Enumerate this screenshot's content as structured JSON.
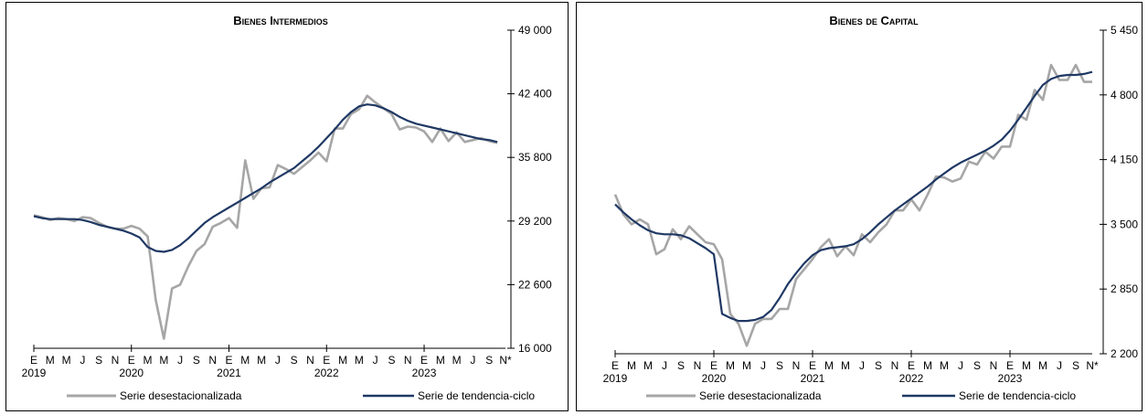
{
  "chart_data": [
    {
      "type": "line",
      "title": "Bienes Intermedios",
      "colors": {
        "seasonal": "#a6a6a6",
        "trend": "#1f3864"
      },
      "ylim": [
        16000,
        49000
      ],
      "yticks": [
        "16 000",
        "22 600",
        "29 200",
        "35 800",
        "42 400",
        "49 000"
      ],
      "ytick_values": [
        16000,
        22600,
        29200,
        35800,
        42400,
        49000
      ],
      "axis_side": "right",
      "grid": false,
      "legend_position": "bottom",
      "month_labels": [
        "E",
        "M",
        "M",
        "J",
        "S",
        "N",
        "E",
        "M",
        "M",
        "J",
        "S",
        "N",
        "E",
        "M",
        "M",
        "J",
        "S",
        "N",
        "E",
        "M",
        "M",
        "J",
        "S",
        "N",
        "E",
        "M",
        "M",
        "J",
        "S",
        "N*"
      ],
      "year_labels": [
        {
          "label": "2019",
          "index": 0
        },
        {
          "label": "2020",
          "index": 12
        },
        {
          "label": "2021",
          "index": 24
        },
        {
          "label": "2022",
          "index": 36
        },
        {
          "label": "2023",
          "index": 48
        }
      ],
      "series": [
        {
          "name": "Serie desestacionalizada",
          "color": "#a6a6a6",
          "values": [
            29800,
            29600,
            29300,
            29500,
            29400,
            29200,
            29600,
            29500,
            29000,
            28600,
            28400,
            28400,
            28700,
            28400,
            27600,
            21000,
            17000,
            22200,
            22600,
            24500,
            26100,
            26800,
            28600,
            29000,
            29500,
            28500,
            35500,
            31500,
            32600,
            32700,
            35000,
            34600,
            34100,
            34800,
            35500,
            36300,
            35400,
            38800,
            38800,
            40300,
            40800,
            42200,
            41500,
            40900,
            40300,
            38700,
            39000,
            38900,
            38500,
            37400,
            38800,
            37500,
            38400,
            37400,
            37600,
            37800,
            37500,
            37300
          ],
          "values_note": ""
        },
        {
          "name": "Serie de tendencia-ciclo",
          "color": "#1f3864",
          "values": [
            29700,
            29500,
            29400,
            29400,
            29400,
            29400,
            29300,
            29100,
            28800,
            28600,
            28400,
            28200,
            27900,
            27500,
            26500,
            26100,
            26000,
            26200,
            26700,
            27400,
            28200,
            29000,
            29600,
            30100,
            30600,
            31100,
            31600,
            32100,
            32600,
            33200,
            33700,
            34200,
            34700,
            35400,
            36100,
            36900,
            37800,
            38700,
            39700,
            40500,
            41100,
            41300,
            41200,
            40900,
            40500,
            40000,
            39600,
            39300,
            39100,
            38900,
            38700,
            38500,
            38300,
            38100,
            37900,
            37700,
            37600,
            37400
          ]
        }
      ]
    },
    {
      "type": "line",
      "title": "Bienes de Capital",
      "colors": {
        "seasonal": "#a6a6a6",
        "trend": "#1f3864"
      },
      "ylim": [
        2200,
        5450
      ],
      "yticks": [
        "2 200",
        "2 850",
        "3 500",
        "4 150",
        "4 800",
        "5 450"
      ],
      "ytick_values": [
        2200,
        2850,
        3500,
        4150,
        4800,
        5450
      ],
      "axis_side": "right",
      "grid": false,
      "legend_position": "bottom",
      "month_labels": [
        "E",
        "M",
        "M",
        "J",
        "S",
        "N",
        "E",
        "M",
        "M",
        "J",
        "S",
        "N",
        "E",
        "M",
        "M",
        "J",
        "S",
        "N",
        "E",
        "M",
        "M",
        "J",
        "S",
        "N",
        "E",
        "M",
        "M",
        "J",
        "S",
        "N*"
      ],
      "year_labels": [
        {
          "label": "2019",
          "index": 0
        },
        {
          "label": "2020",
          "index": 12
        },
        {
          "label": "2021",
          "index": 24
        },
        {
          "label": "2022",
          "index": 36
        },
        {
          "label": "2023",
          "index": 48
        }
      ],
      "series": [
        {
          "name": "Serie desestacionalizada",
          "color": "#a6a6a6",
          "values": [
            3800,
            3600,
            3500,
            3550,
            3500,
            3200,
            3250,
            3450,
            3350,
            3480,
            3400,
            3320,
            3300,
            3150,
            2600,
            2500,
            2280,
            2500,
            2550,
            2550,
            2650,
            2650,
            2950,
            3050,
            3150,
            3270,
            3350,
            3180,
            3280,
            3190,
            3400,
            3320,
            3420,
            3500,
            3640,
            3640,
            3750,
            3640,
            3800,
            3980,
            3970,
            3930,
            3960,
            4130,
            4100,
            4230,
            4160,
            4280,
            4280,
            4600,
            4550,
            4850,
            4750,
            5100,
            4950,
            4950,
            5100,
            4930,
            4930
          ]
        },
        {
          "name": "Serie de tendencia-ciclo",
          "color": "#1f3864",
          "values": [
            3700,
            3620,
            3550,
            3490,
            3440,
            3410,
            3400,
            3400,
            3390,
            3360,
            3310,
            3260,
            3200,
            2600,
            2560,
            2530,
            2530,
            2540,
            2570,
            2640,
            2760,
            2900,
            3010,
            3110,
            3190,
            3240,
            3260,
            3270,
            3280,
            3300,
            3350,
            3420,
            3500,
            3570,
            3640,
            3700,
            3760,
            3820,
            3880,
            3950,
            4010,
            4070,
            4120,
            4160,
            4200,
            4240,
            4290,
            4350,
            4440,
            4550,
            4670,
            4790,
            4900,
            4960,
            4990,
            5000,
            5000,
            5010,
            5030
          ]
        }
      ]
    }
  ]
}
